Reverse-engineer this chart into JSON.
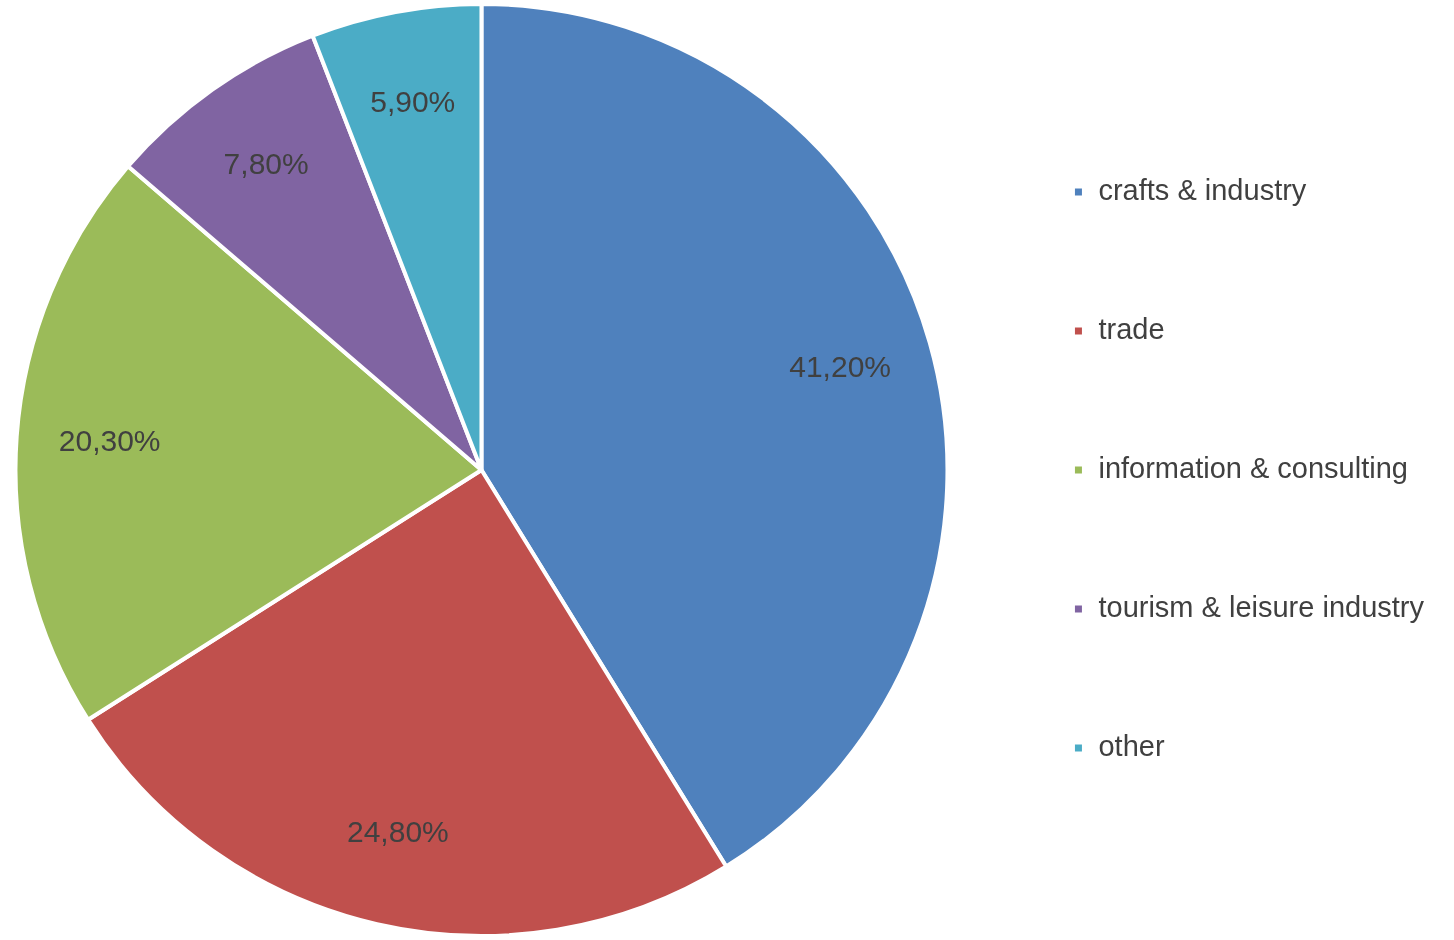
{
  "chart_data": {
    "type": "pie",
    "categories": [
      "crafts & industry",
      "trade",
      "information & consulting",
      "tourism & leisure industry",
      "other"
    ],
    "values": [
      41.2,
      24.8,
      20.3,
      7.8,
      5.9
    ],
    "colors": [
      "#4f81bd",
      "#c0504d",
      "#9bbb59",
      "#8064a2",
      "#4bacc6"
    ],
    "value_labels": [
      "41,20%",
      "24,80%",
      "20,30%",
      "7,80%",
      "5,90%"
    ],
    "legend": "right"
  }
}
